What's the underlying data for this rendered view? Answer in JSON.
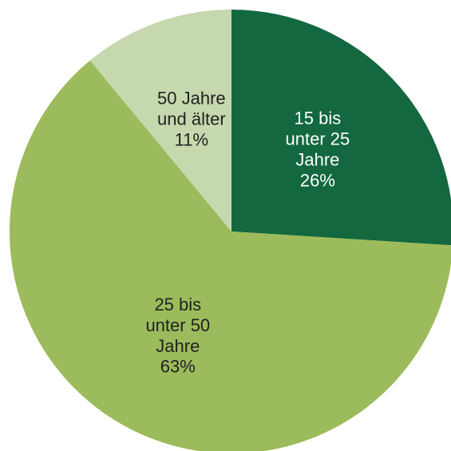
{
  "chart_data": {
    "type": "pie",
    "categories": [
      "15 bis unter 25 Jahre",
      "25 bis unter 50 Jahre",
      "50 Jahre und älter"
    ],
    "values": [
      26,
      63,
      11
    ],
    "value_labels": [
      "26%",
      "63%",
      "11%"
    ],
    "colors": [
      "#13683f",
      "#9cbb5c",
      "#c6d8ad"
    ]
  }
}
